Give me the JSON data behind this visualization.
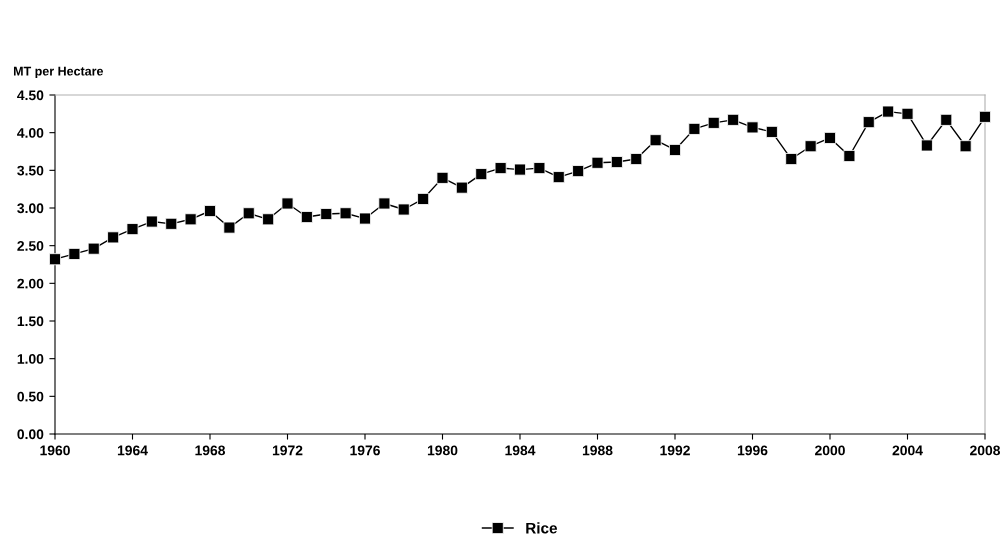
{
  "chart_data": {
    "type": "line",
    "ylabel": "MT per Hectare",
    "x": [
      1960,
      1961,
      1962,
      1963,
      1964,
      1965,
      1966,
      1967,
      1968,
      1969,
      1970,
      1971,
      1972,
      1973,
      1974,
      1975,
      1976,
      1977,
      1978,
      1979,
      1980,
      1981,
      1982,
      1983,
      1984,
      1985,
      1986,
      1987,
      1988,
      1989,
      1990,
      1991,
      1992,
      1993,
      1994,
      1995,
      1996,
      1997,
      1998,
      1999,
      2000,
      2001,
      2002,
      2003,
      2004,
      2005,
      2006,
      2007,
      2008
    ],
    "series": [
      {
        "name": "Rice",
        "color": "#000000",
        "values": [
          2.32,
          2.39,
          2.46,
          2.61,
          2.72,
          2.82,
          2.79,
          2.85,
          2.96,
          2.74,
          2.93,
          2.85,
          3.06,
          2.88,
          2.92,
          2.93,
          2.86,
          3.06,
          2.98,
          3.12,
          3.4,
          3.27,
          3.45,
          3.53,
          3.51,
          3.53,
          3.41,
          3.49,
          3.6,
          3.61,
          3.65,
          3.9,
          3.77,
          4.05,
          4.13,
          4.17,
          4.07,
          4.01,
          3.65,
          3.82,
          3.93,
          3.69,
          4.14,
          4.28,
          4.25,
          3.83,
          4.17,
          3.82,
          4.21
        ]
      }
    ],
    "xlim": [
      1960,
      2008
    ],
    "xticks": [
      1960,
      1964,
      1968,
      1972,
      1976,
      1980,
      1984,
      1988,
      1992,
      1996,
      2000,
      2004,
      2008
    ],
    "ylim": [
      0,
      4.5
    ],
    "yticks": [
      {
        "value": 0,
        "label": "0.00"
      },
      {
        "value": 0.5,
        "label": "0.50"
      },
      {
        "value": 1,
        "label": "1.00"
      },
      {
        "value": 1.5,
        "label": "1.50"
      },
      {
        "value": 2,
        "label": "2.00"
      },
      {
        "value": 2.5,
        "label": "2.50"
      },
      {
        "value": 3,
        "label": "3.00"
      },
      {
        "value": 3.5,
        "label": "3.50"
      },
      {
        "value": 4,
        "label": "4.00"
      },
      {
        "value": 4.5,
        "label": "4.50"
      }
    ],
    "grid": false,
    "legend": "bottom",
    "marker": "square",
    "line_style": "solid"
  }
}
